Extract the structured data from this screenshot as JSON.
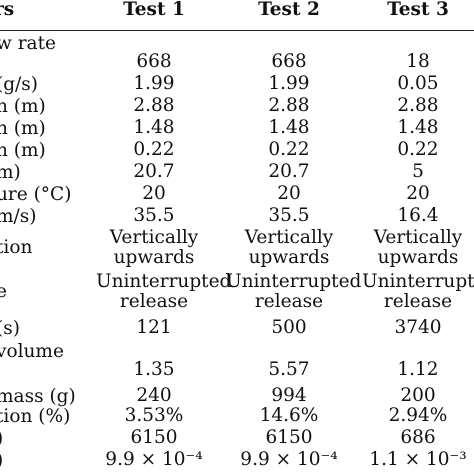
{
  "table": {
    "header": {
      "label": "rs",
      "col1": "Test 1",
      "col2": "Test 2",
      "col3": "Test 3"
    },
    "rows": [
      {
        "label": "w rate",
        "label2": "",
        "v1": "668",
        "v2": "668",
        "v3": "18"
      },
      {
        "label": "(g/s)",
        "v1": "1.99",
        "v2": "1.99",
        "v3": "0.05"
      },
      {
        "label": "n (m)",
        "v1": "2.88",
        "v2": "2.88",
        "v3": "2.88"
      },
      {
        "label": "n (m)",
        "v1": "1.48",
        "v2": "1.48",
        "v3": "1.48"
      },
      {
        "label": "n (m)",
        "v1": "0.22",
        "v2": "0.22",
        "v3": "0.22"
      },
      {
        "label": "m)",
        "v1": "20.7",
        "v2": "20.7",
        "v3": "5"
      },
      {
        "label": "ure (°C)",
        "v1": "20",
        "v2": "20",
        "v3": "20"
      },
      {
        "label": "m/s)",
        "v1": "35.5",
        "v2": "35.5",
        "v3": "16.4"
      },
      {
        "label": "tion",
        "v1a": "Vertically",
        "v1b": "upwards",
        "v2a": "Vertically",
        "v2b": "upwards",
        "v3a": "Vertically",
        "v3b": "upwards"
      },
      {
        "label": "e",
        "v1a": "Uninterrupted",
        "v1b": "release",
        "v2a": "Uninterrupted",
        "v2b": "release",
        "v3a": "Uninterrupted",
        "v3b": "release"
      },
      {
        "label": "(s)",
        "v1": "121",
        "v2": "500",
        "v3": "3740"
      },
      {
        "label": "volume",
        "label2": "",
        "v1": "1.35",
        "v2": "5.57",
        "v3": "1.12"
      },
      {
        "label": "mass (g)",
        "v1": "240",
        "v2": "994",
        "v3": "200"
      },
      {
        "label": "tion (%)",
        "v1": "3.53%",
        "v2": "14.6%",
        "v3": "2.94%"
      },
      {
        "label": ")",
        "v1": "6150",
        "v2": "6150",
        "v3": "686"
      },
      {
        "label": ")",
        "v1": "9.9 × 10⁻⁴",
        "v2": "9.9 × 10⁻⁴",
        "v3": "1.1 × 10⁻³"
      }
    ]
  }
}
